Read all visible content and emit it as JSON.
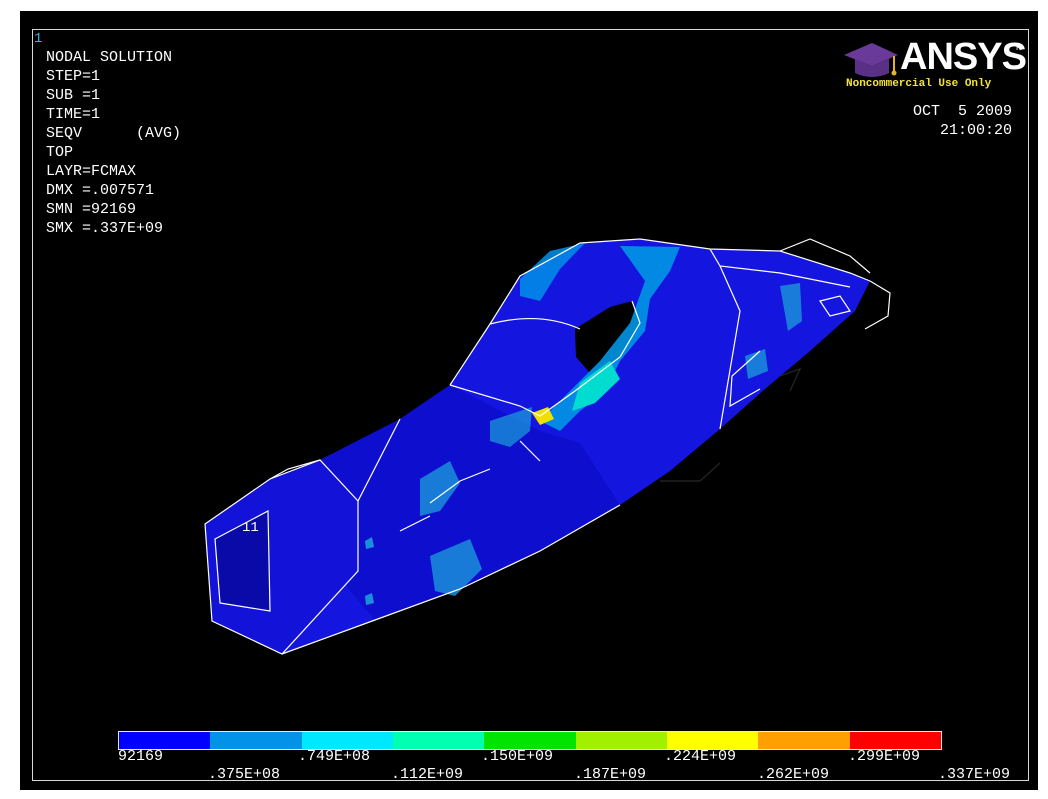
{
  "window_number": "1",
  "info": {
    "title": "NODAL SOLUTION",
    "lines": [
      "STEP=1",
      "SUB =1",
      "TIME=1",
      "SEQV      (AVG)",
      "TOP",
      "LAYR=FCMAX",
      "DMX =.007571",
      "SMN =92169",
      "SMX =.337E+09"
    ]
  },
  "logo": {
    "word": "ANSYS",
    "tm": "R",
    "subtitle": "Noncommercial Use Only",
    "icon": "graduation-cap-icon"
  },
  "date": {
    "date": "OCT  5 2009",
    "time": "21:00:20"
  },
  "model": {
    "node_label": "11"
  },
  "legend": {
    "colors": [
      "#0000ff",
      "#0093e8",
      "#00e8ff",
      "#00ffb0",
      "#00e400",
      "#a0f000",
      "#ffff00",
      "#ffa000",
      "#ff0000"
    ],
    "labels_top": [
      "92169",
      ".749E+08",
      ".150E+09",
      ".224E+09",
      ".299E+09"
    ],
    "labels_bottom": [
      ".375E+08",
      ".112E+09",
      ".187E+09",
      ".262E+09",
      ".337E+09"
    ]
  }
}
